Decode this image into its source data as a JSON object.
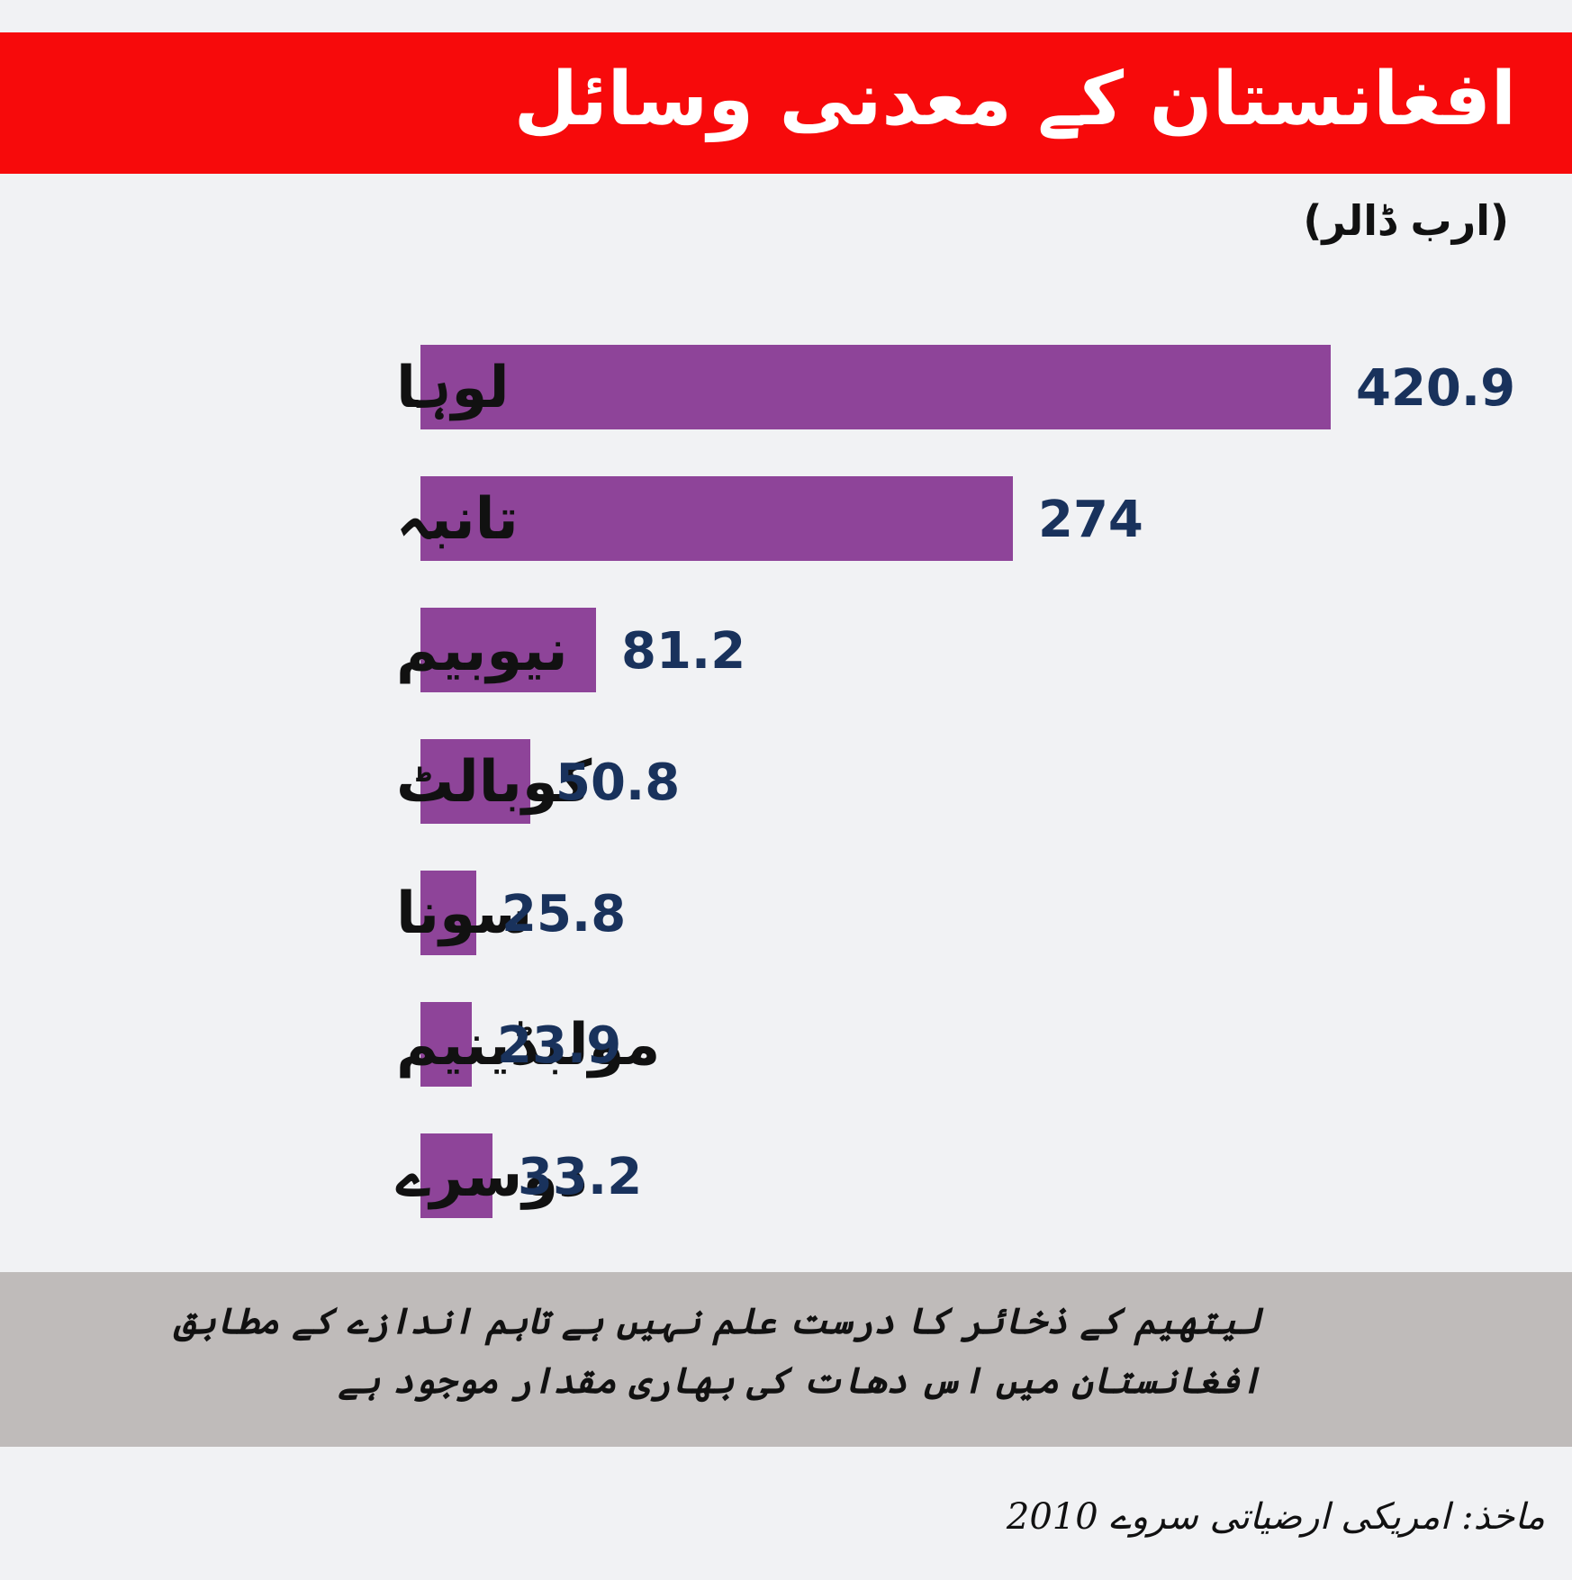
{
  "header": {
    "title": "افغانستان کے معدنی وسائل",
    "background_color": "#f70a0b"
  },
  "unit_label": "(ارب ڈالر)",
  "chart_data": {
    "type": "bar",
    "orientation": "horizontal",
    "title": "افغانستان کے معدنی وسائل",
    "ylabel": "(ارب ڈالر)",
    "categories": [
      "لوہا",
      "تانبہ",
      "نیوبیم",
      "کوبالٹ",
      "سونا",
      "مولبڈینیم",
      "دوسرے"
    ],
    "values": [
      420.9,
      274,
      81.2,
      50.8,
      25.8,
      23.9,
      33.2
    ],
    "value_labels": [
      "420.9",
      "274",
      "81.2",
      "50.8",
      "25.8",
      "23.9",
      "33.2"
    ],
    "bar_color": "#8e4499",
    "value_label_color": "#19325c",
    "xlim": [
      0,
      420.9
    ],
    "grid": false,
    "legend": "none"
  },
  "note": "لیتھیم کے ذخائر کا درست علم نہیں ہے تاہم اندازے کے مطابق افغانستان میں اس دھات کی بھاری مقدار موجود ہے",
  "source": "ماخذ: امریکی ارضیاتی سروے 2010"
}
